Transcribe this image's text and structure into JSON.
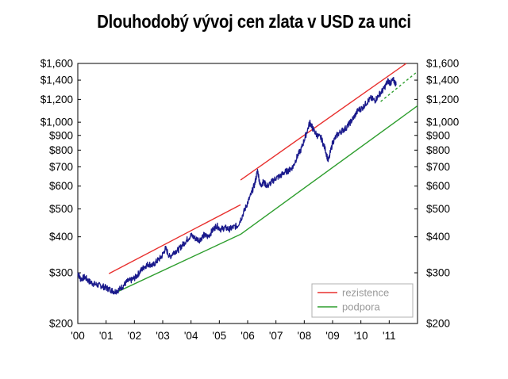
{
  "chart_data": {
    "type": "line",
    "title": "Dlouhodobý vývoj cen zlata v USD za unci",
    "xlabel": "",
    "ylabel": "",
    "y_scale": "log",
    "ylim": [
      200,
      1600
    ],
    "xlim": [
      2000,
      2012
    ],
    "grid": false,
    "legend_position": "bottom-right",
    "x_tick_labels": [
      "'00",
      "'01",
      "'02",
      "'03",
      "'04",
      "'05",
      "'06",
      "'07",
      "'08",
      "'09",
      "'10",
      "'11"
    ],
    "x_tick_values": [
      2000,
      2001,
      2002,
      2003,
      2004,
      2005,
      2006,
      2007,
      2008,
      2009,
      2010,
      2011
    ],
    "y_tick_labels": [
      "$200",
      "$300",
      "$400",
      "$500",
      "$600",
      "$700",
      "$800",
      "$900",
      "$1,000",
      "$1,200",
      "$1,400",
      "$1,600"
    ],
    "y_tick_values": [
      200,
      300,
      400,
      500,
      600,
      700,
      800,
      900,
      1000,
      1200,
      1400,
      1600
    ],
    "series": [
      {
        "name": "",
        "color": "#1a1a8c",
        "kind": "price",
        "x": [
          2000.0,
          2000.1,
          2000.25,
          2000.4,
          2000.55,
          2000.7,
          2000.85,
          2001.0,
          2001.15,
          2001.3,
          2001.45,
          2001.6,
          2001.75,
          2001.9,
          2002.05,
          2002.2,
          2002.35,
          2002.5,
          2002.65,
          2002.8,
          2002.95,
          2003.1,
          2003.25,
          2003.4,
          2003.55,
          2003.7,
          2003.85,
          2004.0,
          2004.15,
          2004.3,
          2004.45,
          2004.6,
          2004.75,
          2004.9,
          2005.05,
          2005.2,
          2005.35,
          2005.5,
          2005.65,
          2005.8,
          2005.95,
          2006.1,
          2006.25,
          2006.35,
          2006.45,
          2006.55,
          2006.7,
          2006.85,
          2007.0,
          2007.15,
          2007.3,
          2007.45,
          2007.6,
          2007.75,
          2007.9,
          2008.05,
          2008.2,
          2008.3,
          2008.45,
          2008.6,
          2008.75,
          2008.85,
          2009.0,
          2009.15,
          2009.3,
          2009.45,
          2009.6,
          2009.75,
          2009.9,
          2010.05,
          2010.2,
          2010.35,
          2010.5,
          2010.65,
          2010.8,
          2010.95,
          2011.05,
          2011.15,
          2011.25
        ],
        "values": [
          300,
          285,
          290,
          280,
          275,
          272,
          270,
          266,
          262,
          258,
          262,
          270,
          280,
          283,
          290,
          303,
          315,
          322,
          318,
          330,
          340,
          365,
          340,
          355,
          360,
          375,
          390,
          405,
          395,
          390,
          405,
          400,
          420,
          438,
          425,
          430,
          425,
          432,
          438,
          470,
          512,
          555,
          610,
          680,
          600,
          620,
          600,
          620,
          640,
          650,
          670,
          680,
          700,
          760,
          810,
          900,
          1000,
          950,
          900,
          880,
          800,
          730,
          850,
          900,
          930,
          950,
          990,
          1040,
          1100,
          1120,
          1170,
          1210,
          1190,
          1250,
          1300,
          1390,
          1370,
          1400,
          1350
        ]
      },
      {
        "name": "rezistence",
        "color": "#e8302e",
        "kind": "line",
        "segments": [
          [
            [
              2001.1,
              298
            ],
            [
              2005.75,
              517
            ]
          ],
          [
            [
              2005.75,
              630
            ],
            [
              2011.6,
              1600
            ]
          ]
        ]
      },
      {
        "name": "podpora",
        "color": "#2e9e2e",
        "kind": "line",
        "segments": [
          [
            [
              2001.3,
              255
            ],
            [
              2005.75,
              408
            ]
          ],
          [
            [
              2005.75,
              408
            ],
            [
              2012,
              1140
            ]
          ]
        ]
      },
      {
        "name": "",
        "color": "#2e9e2e",
        "kind": "dashed",
        "segments": [
          [
            [
              2010.7,
              1180
            ],
            [
              2012,
              1500
            ]
          ]
        ]
      }
    ]
  },
  "legend": {
    "items": [
      {
        "label": "rezistence",
        "color": "#e8302e"
      },
      {
        "label": "podpora",
        "color": "#2e9e2e"
      }
    ]
  }
}
